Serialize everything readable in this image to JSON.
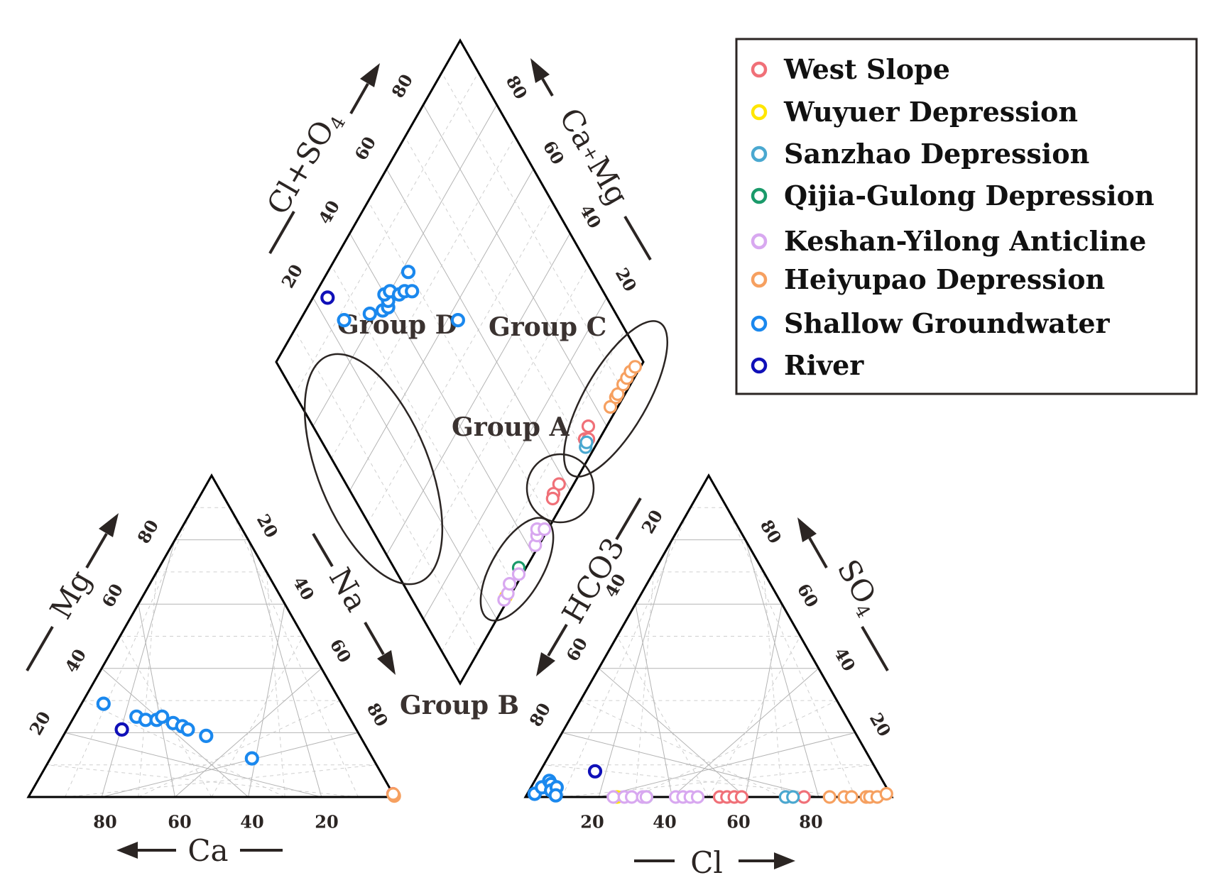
{
  "chart_data": {
    "type": "scatter",
    "title": "",
    "legend": {
      "placement": "top-right",
      "entries": [
        {
          "key": "west_slope",
          "label": "West Slope",
          "color": "#f07078"
        },
        {
          "key": "wuyuer",
          "label": "Wuyuer Depression",
          "color": "#ffe600"
        },
        {
          "key": "sanzhao",
          "label": "Sanzhao Depression",
          "color": "#4aa8d0"
        },
        {
          "key": "qijia",
          "label": "Qijia-Gulong Depression",
          "color": "#1a9a6a"
        },
        {
          "key": "keshan",
          "label": "Keshan-Yilong Anticline",
          "color": "#d8a8f0"
        },
        {
          "key": "heiyupao",
          "label": "Heiyupao Depression",
          "color": "#f6a060"
        },
        {
          "key": "shallow",
          "label": "Shallow Groundwater",
          "color": "#1a88ee"
        },
        {
          "key": "river",
          "label": "River",
          "color": "#1010b8"
        }
      ]
    },
    "axes": {
      "cation_triangle": {
        "ticks_ca": [
          "80",
          "60",
          "40",
          "20"
        ],
        "ticks_mg": [
          "20",
          "40",
          "60",
          "80"
        ],
        "ticks_na": [
          "20",
          "40",
          "60",
          "80"
        ],
        "label_ca": "Ca",
        "label_mg": "Mg",
        "label_na": "Na"
      },
      "anion_triangle": {
        "ticks_cl": [
          "20",
          "40",
          "60",
          "80"
        ],
        "ticks_so4": [
          "80",
          "60",
          "40",
          "20"
        ],
        "ticks_hco3": [
          "20",
          "40",
          "60",
          "80"
        ],
        "label_cl": "Cl",
        "label_so4": "SO",
        "label_so4_sub": "4",
        "label_hco3": "HCO3"
      },
      "diamond": {
        "ticks_clso4": [
          "20",
          "40",
          "60",
          "80"
        ],
        "ticks_camg": [
          "20",
          "40",
          "60",
          "80"
        ],
        "label_clso4": "Cl+SO",
        "label_clso4_sub": "4",
        "label_camg_1": "Ca",
        "label_camg_plus": "+",
        "label_camg_2": "Mg"
      }
    },
    "groups": {
      "A": "Group A",
      "B": "Group B",
      "C": "Group C",
      "D": "Group D"
    },
    "series": [
      {
        "key": "west_slope",
        "cation": [
          [
            0.0,
            0.5
          ],
          [
            0.0,
            1.0
          ]
        ],
        "anion": [
          [
            53,
            0
          ],
          [
            55,
            0
          ],
          [
            57,
            0
          ],
          [
            59,
            0
          ],
          [
            71,
            0
          ],
          [
            76,
            0
          ]
        ],
        "diamond": [
          [
            58,
            4
          ],
          [
            55,
            4
          ],
          [
            54,
            3.5
          ],
          [
            75,
            5
          ],
          [
            72,
            4
          ],
          [
            73,
            3
          ]
        ]
      },
      {
        "key": "wuyuer",
        "cation": [
          [
            0.0,
            0.8
          ]
        ],
        "anion": [
          [
            25,
            0
          ]
        ],
        "diamond": [
          [
            26,
            1
          ]
        ]
      },
      {
        "key": "sanzhao",
        "cation": [
          [
            0.0,
            0.6
          ]
        ],
        "anion": [
          [
            71,
            0
          ],
          [
            73,
            0
          ]
        ],
        "diamond": [
          [
            71,
            2.5
          ],
          [
            72,
            3
          ]
        ]
      },
      {
        "key": "qijia",
        "cation": [
          [
            0.0,
            0.6
          ]
        ],
        "anion": [
          [
            33,
            0
          ]
        ],
        "diamond": [
          [
            34,
            2
          ]
        ]
      },
      {
        "key": "keshan",
        "cation": [
          [
            0.0,
            0.5
          ],
          [
            0.0,
            0.7
          ]
        ],
        "anion": [
          [
            24,
            0
          ],
          [
            27,
            0
          ],
          [
            29,
            0
          ],
          [
            32,
            0
          ],
          [
            33,
            0
          ],
          [
            41,
            0
          ],
          [
            43,
            0
          ],
          [
            45,
            0
          ],
          [
            47,
            0
          ]
        ],
        "diamond": [
          [
            25,
            1
          ],
          [
            27,
            1
          ],
          [
            29,
            2
          ],
          [
            33,
            1
          ],
          [
            42,
            1
          ],
          [
            44,
            2
          ],
          [
            45,
            3
          ],
          [
            47,
            1
          ]
        ]
      },
      {
        "key": "heiyupao",
        "cation": [
          [
            0.0,
            0.3
          ],
          [
            0.0,
            0.5
          ],
          [
            0.0,
            0.7
          ],
          [
            0.0,
            0.9
          ]
        ],
        "anion": [
          [
            83,
            0
          ],
          [
            87,
            0
          ],
          [
            89,
            0
          ],
          [
            93,
            0
          ],
          [
            94,
            0
          ],
          [
            96,
            0
          ],
          [
            98,
            1
          ]
        ],
        "diamond": [
          [
            84,
            2
          ],
          [
            87,
            2
          ],
          [
            88,
            2
          ],
          [
            91,
            2
          ],
          [
            93,
            2
          ],
          [
            95,
            2
          ],
          [
            97,
            1.5
          ]
        ]
      },
      {
        "key": "shallow",
        "cation": [
          [
            65,
            29
          ],
          [
            58,
            25
          ],
          [
            56,
            24
          ],
          [
            53,
            24
          ],
          [
            51,
            25
          ],
          [
            49,
            23
          ],
          [
            47,
            22
          ],
          [
            46,
            21
          ],
          [
            42,
            19
          ],
          [
            33,
            12
          ]
        ],
        "anion": [
          [
            2,
            1
          ],
          [
            3,
            3
          ],
          [
            4,
            5
          ],
          [
            5,
            4
          ],
          [
            6,
            2
          ],
          [
            7,
            3
          ],
          [
            8,
            0.5
          ]
        ],
        "diamond": [
          [
            25,
            88
          ],
          [
            33,
            82
          ],
          [
            37,
            79
          ],
          [
            39,
            78
          ],
          [
            40,
            79
          ],
          [
            40,
            81
          ],
          [
            42,
            80
          ],
          [
            44,
            77
          ],
          [
            46,
            76
          ],
          [
            48,
            74
          ],
          [
            50,
            78
          ],
          [
            56,
            57
          ]
        ]
      },
      {
        "key": "river",
        "cation": [
          [
            64,
            21
          ]
        ],
        "anion": [
          [
            15,
            8
          ]
        ],
        "diamond": [
          [
            24,
            96
          ]
        ]
      }
    ]
  }
}
